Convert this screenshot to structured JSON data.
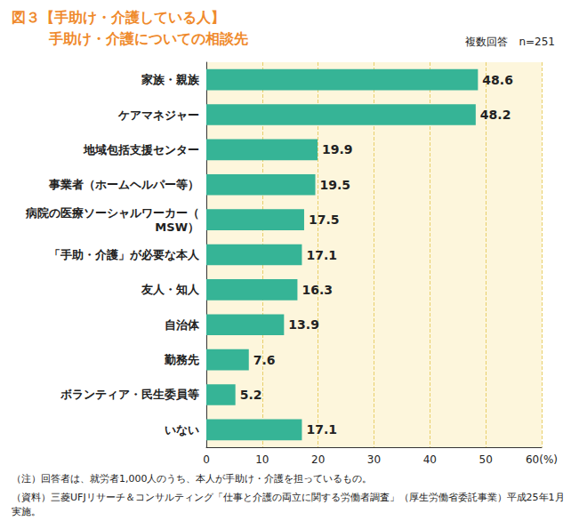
{
  "chart_data": {
    "type": "bar",
    "title": "図３【手助け・介護している人】",
    "subtitle": "手助け・介護についての相談先",
    "annotations": [
      "複数回答　n=251",
      "（注）回答者は、就労者1,000人のうち、本人が手助け・介護を担っているもの。",
      "（資料）三菱UFJリサーチ＆コンサルティング「仕事と介護の両立に関する労働者調査」（厚生労働省委託事業）平成25年1月実施。"
    ],
    "categories": [
      "家族・親族",
      "ケアマネジャー",
      "地域包括支援センター",
      "事業者（ホームヘルパー等）",
      "病院の医療ソーシャルワーカー（MSW）",
      "「手助・介護」が必要な本人",
      "友人・知人",
      "自治体",
      "勤務先",
      "ボランティア・民生委員等",
      "いない"
    ],
    "values": [
      48.6,
      48.2,
      19.9,
      19.5,
      17.5,
      17.1,
      16.3,
      13.9,
      7.6,
      5.2,
      17.1
    ],
    "color": "#36b496",
    "orientation": "horizontal",
    "xlim": [
      0,
      60
    ],
    "xticks": [
      0,
      10,
      20,
      30,
      40,
      50,
      {
        "value": 60,
        "label": "60(%)"
      }
    ],
    "grid": true,
    "data_labels": true
  }
}
